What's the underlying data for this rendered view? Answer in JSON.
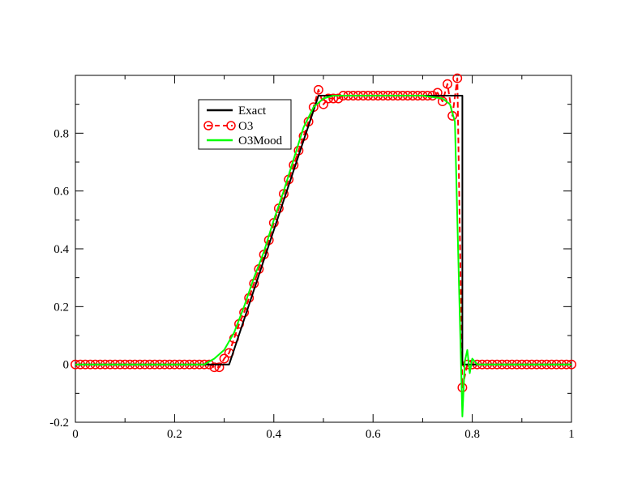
{
  "chart_data": {
    "type": "line",
    "title": "",
    "xlabel": "",
    "ylabel": "",
    "xlim": [
      0,
      1
    ],
    "ylim": [
      -0.2,
      1.0
    ],
    "x_ticks": [
      0,
      0.2,
      0.4,
      0.6,
      0.8,
      1
    ],
    "x_tick_labels": [
      "0",
      "0.2",
      "0.4",
      "0.6",
      "0.8",
      "1"
    ],
    "y_ticks": [
      -0.2,
      0,
      0.2,
      0.4,
      0.6,
      0.8
    ],
    "y_tick_labels": [
      "-0.2",
      "0",
      "0.2",
      "0.4",
      "0.6",
      "0.8"
    ],
    "grid": false,
    "legend_position": "top-left",
    "series": [
      {
        "name": "Exact",
        "color": "#000000",
        "style": "solid",
        "x": [
          0,
          0.31,
          0.49,
          0.78,
          0.78,
          1
        ],
        "y": [
          0,
          0,
          0.93,
          0.93,
          0,
          0
        ]
      },
      {
        "name": "O3",
        "color": "#ff0000",
        "style": "dashed-circle-markers",
        "x": [
          0.0,
          0.01,
          0.02,
          0.03,
          0.04,
          0.05,
          0.06,
          0.07,
          0.08,
          0.09,
          0.1,
          0.11,
          0.12,
          0.13,
          0.14,
          0.15,
          0.16,
          0.17,
          0.18,
          0.19,
          0.2,
          0.21,
          0.22,
          0.23,
          0.24,
          0.25,
          0.26,
          0.27,
          0.28,
          0.29,
          0.3,
          0.31,
          0.32,
          0.33,
          0.34,
          0.35,
          0.36,
          0.37,
          0.38,
          0.39,
          0.4,
          0.41,
          0.42,
          0.43,
          0.44,
          0.45,
          0.46,
          0.47,
          0.48,
          0.49,
          0.5,
          0.51,
          0.52,
          0.53,
          0.54,
          0.55,
          0.56,
          0.57,
          0.58,
          0.59,
          0.6,
          0.61,
          0.62,
          0.63,
          0.64,
          0.65,
          0.66,
          0.67,
          0.68,
          0.69,
          0.7,
          0.71,
          0.72,
          0.73,
          0.74,
          0.75,
          0.76,
          0.77,
          0.78,
          0.79,
          0.8,
          0.81,
          0.82,
          0.83,
          0.84,
          0.85,
          0.86,
          0.87,
          0.88,
          0.89,
          0.9,
          0.91,
          0.92,
          0.93,
          0.94,
          0.95,
          0.96,
          0.97,
          0.98,
          0.99,
          1.0
        ],
        "y": [
          0,
          0,
          0,
          0,
          0,
          0,
          0,
          0,
          0,
          0,
          0,
          0,
          0,
          0,
          0,
          0,
          0,
          0,
          0,
          0,
          0,
          0,
          0,
          0,
          0,
          0,
          0,
          0,
          -0.01,
          -0.01,
          0.02,
          0.04,
          0.09,
          0.14,
          0.18,
          0.23,
          0.28,
          0.33,
          0.38,
          0.43,
          0.49,
          0.54,
          0.59,
          0.64,
          0.69,
          0.74,
          0.79,
          0.84,
          0.89,
          0.95,
          0.9,
          0.92,
          0.92,
          0.92,
          0.93,
          0.93,
          0.93,
          0.93,
          0.93,
          0.93,
          0.93,
          0.93,
          0.93,
          0.93,
          0.93,
          0.93,
          0.93,
          0.93,
          0.93,
          0.93,
          0.93,
          0.93,
          0.93,
          0.94,
          0.91,
          0.97,
          0.86,
          0.99,
          -0.08,
          0,
          0,
          0,
          0,
          0,
          0,
          0,
          0,
          0,
          0,
          0,
          0,
          0,
          0,
          0,
          0,
          0,
          0,
          0,
          0,
          0,
          0
        ]
      },
      {
        "name": "O3Mood",
        "color": "#00ff00",
        "style": "solid",
        "x": [
          0,
          0.26,
          0.28,
          0.3,
          0.32,
          0.34,
          0.36,
          0.38,
          0.4,
          0.42,
          0.44,
          0.46,
          0.48,
          0.5,
          0.52,
          0.54,
          0.6,
          0.7,
          0.74,
          0.755,
          0.765,
          0.77,
          0.775,
          0.78,
          0.785,
          0.79,
          0.795,
          0.8,
          0.81,
          0.82,
          1
        ],
        "y": [
          0,
          0,
          0.02,
          0.05,
          0.11,
          0.2,
          0.3,
          0.39,
          0.5,
          0.6,
          0.71,
          0.82,
          0.89,
          0.92,
          0.93,
          0.93,
          0.93,
          0.93,
          0.92,
          0.9,
          0.84,
          0.5,
          0.16,
          -0.18,
          0.01,
          0.05,
          -0.03,
          0.02,
          0.0,
          0.0,
          0
        ]
      }
    ]
  }
}
